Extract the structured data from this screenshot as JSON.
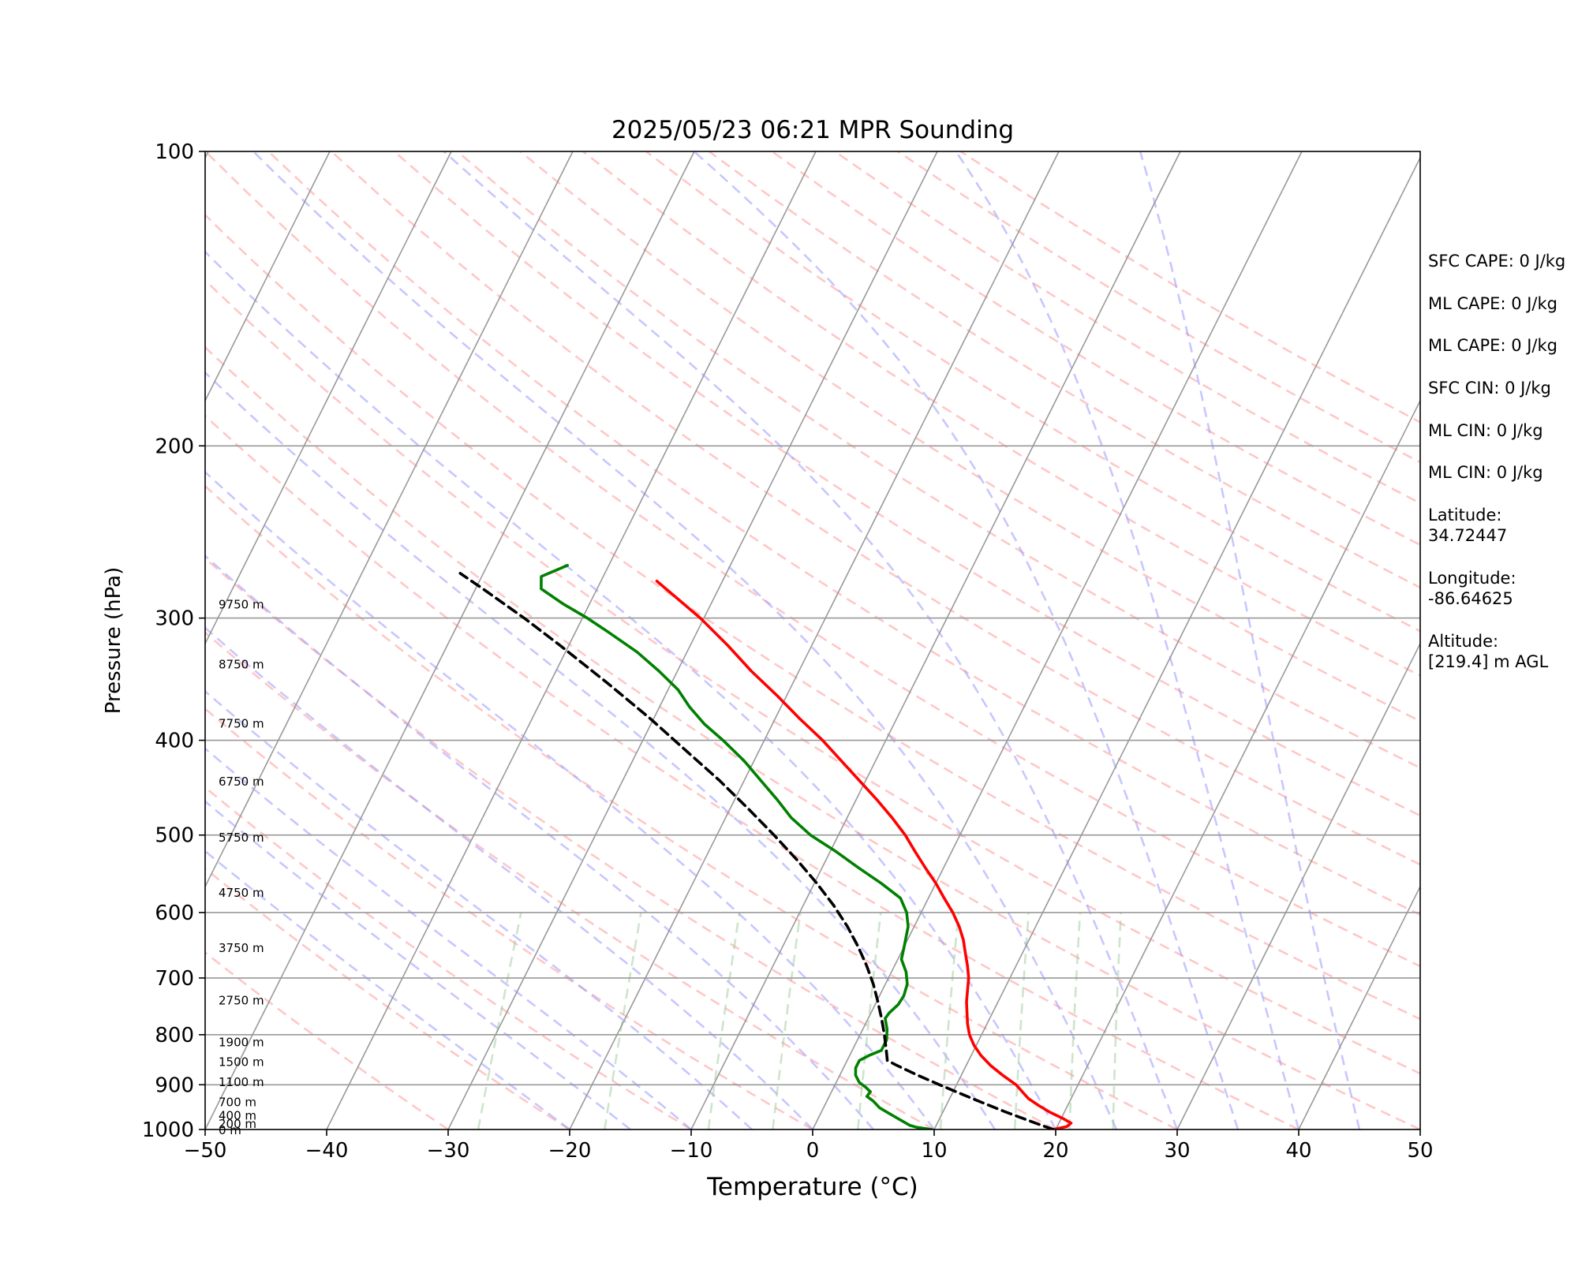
{
  "chart_data": {
    "type": "line",
    "subtype": "skew-t log-p sounding",
    "title": "2025/05/23 06:21 MPR Sounding",
    "xlabel": "Temperature (°C)",
    "ylabel": "Pressure (hPa)",
    "xlim": [
      -50,
      50
    ],
    "ylim": [
      1000,
      100
    ],
    "y_scale": "log",
    "x_ticks": [
      -50,
      -40,
      -30,
      -20,
      -10,
      0,
      10,
      20,
      30,
      40,
      50
    ],
    "x_tick_labels": [
      "−50",
      "−40",
      "−30",
      "−20",
      "−10",
      "0",
      "10",
      "20",
      "30",
      "40",
      "50"
    ],
    "y_ticks": [
      100,
      200,
      300,
      400,
      500,
      600,
      700,
      800,
      900,
      1000
    ],
    "y_tick_labels": [
      "100",
      "200",
      "300",
      "400",
      "500",
      "600",
      "700",
      "800",
      "900",
      "1000"
    ],
    "grid": true,
    "height_labels": [
      {
        "text": "0 m",
        "p": 1000
      },
      {
        "text": "200 m",
        "p": 985
      },
      {
        "text": "400 m",
        "p": 966
      },
      {
        "text": "700 m",
        "p": 936
      },
      {
        "text": "1100 m",
        "p": 893
      },
      {
        "text": "1500 m",
        "p": 852
      },
      {
        "text": "1900 m",
        "p": 813
      },
      {
        "text": "2750 m",
        "p": 737
      },
      {
        "text": "3750 m",
        "p": 651
      },
      {
        "text": "4750 m",
        "p": 572
      },
      {
        "text": "5750 m",
        "p": 502
      },
      {
        "text": "6750 m",
        "p": 440
      },
      {
        "text": "7750 m",
        "p": 384
      },
      {
        "text": "8750 m",
        "p": 334
      },
      {
        "text": "9750 m",
        "p": 290
      }
    ],
    "series": [
      {
        "role": "temperature",
        "color": "#ff0000",
        "points": [
          [
            1000,
            19.8
          ],
          [
            993,
            20.8
          ],
          [
            985,
            21.0
          ],
          [
            975,
            20.2
          ],
          [
            960,
            18.8
          ],
          [
            945,
            17.6
          ],
          [
            930,
            16.5
          ],
          [
            915,
            15.7
          ],
          [
            900,
            14.9
          ],
          [
            880,
            13.4
          ],
          [
            860,
            12.0
          ],
          [
            840,
            10.8
          ],
          [
            820,
            9.8
          ],
          [
            800,
            9.0
          ],
          [
            780,
            8.4
          ],
          [
            760,
            7.9
          ],
          [
            740,
            7.4
          ],
          [
            720,
            7.0
          ],
          [
            700,
            6.6
          ],
          [
            680,
            6.0
          ],
          [
            660,
            5.3
          ],
          [
            640,
            4.6
          ],
          [
            620,
            3.7
          ],
          [
            600,
            2.6
          ],
          [
            580,
            1.3
          ],
          [
            560,
            0.0
          ],
          [
            540,
            -1.5
          ],
          [
            520,
            -3.0
          ],
          [
            500,
            -4.5
          ],
          [
            480,
            -6.3
          ],
          [
            460,
            -8.3
          ],
          [
            440,
            -10.5
          ],
          [
            420,
            -12.8
          ],
          [
            400,
            -15.2
          ],
          [
            380,
            -18.0
          ],
          [
            360,
            -20.8
          ],
          [
            340,
            -23.9
          ],
          [
            320,
            -26.9
          ],
          [
            300,
            -30.3
          ],
          [
            285,
            -33.3
          ],
          [
            275,
            -35.4
          ]
        ]
      },
      {
        "role": "dewpoint",
        "color": "#008000",
        "points": [
          [
            1000,
            9.8
          ],
          [
            995,
            8.5
          ],
          [
            990,
            7.8
          ],
          [
            980,
            7.0
          ],
          [
            965,
            5.8
          ],
          [
            950,
            4.6
          ],
          [
            935,
            3.8
          ],
          [
            925,
            3.1
          ],
          [
            915,
            3.2
          ],
          [
            905,
            2.6
          ],
          [
            895,
            1.9
          ],
          [
            880,
            1.3
          ],
          [
            865,
            1.0
          ],
          [
            850,
            1.0
          ],
          [
            840,
            1.6
          ],
          [
            830,
            2.4
          ],
          [
            810,
            2.4
          ],
          [
            790,
            2.0
          ],
          [
            770,
            1.4
          ],
          [
            760,
            1.5
          ],
          [
            745,
            1.9
          ],
          [
            730,
            2.0
          ],
          [
            710,
            1.8
          ],
          [
            690,
            1.2
          ],
          [
            670,
            0.3
          ],
          [
            650,
            0.0
          ],
          [
            620,
            -0.5
          ],
          [
            600,
            -1.2
          ],
          [
            580,
            -2.3
          ],
          [
            560,
            -4.5
          ],
          [
            540,
            -7.0
          ],
          [
            520,
            -9.5
          ],
          [
            500,
            -12.3
          ],
          [
            480,
            -14.6
          ],
          [
            460,
            -16.5
          ],
          [
            440,
            -18.6
          ],
          [
            420,
            -20.8
          ],
          [
            400,
            -23.4
          ],
          [
            385,
            -25.6
          ],
          [
            370,
            -27.5
          ],
          [
            355,
            -29.2
          ],
          [
            340,
            -31.5
          ],
          [
            325,
            -34.1
          ],
          [
            310,
            -37.3
          ],
          [
            300,
            -39.6
          ],
          [
            290,
            -42.2
          ],
          [
            280,
            -44.6
          ],
          [
            272,
            -45.1
          ],
          [
            265,
            -43.4
          ]
        ]
      },
      {
        "role": "parcel",
        "color": "#000000",
        "dashed": true,
        "points": [
          [
            1000,
            19.8
          ],
          [
            980,
            17.5
          ],
          [
            960,
            15.2
          ],
          [
            940,
            13.0
          ],
          [
            920,
            10.8
          ],
          [
            900,
            8.6
          ],
          [
            880,
            6.4
          ],
          [
            860,
            4.3
          ],
          [
            850,
            3.3
          ],
          [
            830,
            2.8
          ],
          [
            800,
            2.0
          ],
          [
            770,
            1.1
          ],
          [
            740,
            0.1
          ],
          [
            710,
            -1.0
          ],
          [
            680,
            -2.3
          ],
          [
            650,
            -3.8
          ],
          [
            620,
            -5.5
          ],
          [
            590,
            -7.5
          ],
          [
            560,
            -9.8
          ],
          [
            530,
            -12.4
          ],
          [
            500,
            -15.3
          ],
          [
            470,
            -18.5
          ],
          [
            440,
            -22.0
          ],
          [
            410,
            -26.0
          ],
          [
            380,
            -30.3
          ],
          [
            350,
            -35.2
          ],
          [
            320,
            -40.7
          ],
          [
            300,
            -44.8
          ],
          [
            280,
            -49.4
          ],
          [
            270,
            -51.9
          ]
        ]
      }
    ]
  },
  "annotations": [
    "SFC CAPE: 0 J/kg",
    "ML CAPE: 0 J/kg",
    "ML CAPE: 0 J/kg",
    "SFC CIN: 0 J/kg",
    "ML CIN: 0 J/kg",
    "ML CIN: 0 J/kg",
    "Latitude:",
    "34.72447",
    "Longitude:",
    "-86.64625",
    "Altitude:",
    "[219.4] m AGL"
  ],
  "colors": {
    "temperature": "#ff0000",
    "dewpoint": "#008000",
    "parcel": "#000000",
    "dry_adiabats": "#ff9999",
    "moist_adiabats": "#9999ff",
    "mixing_ratio": "#99cc99",
    "isotherms": "#999999"
  }
}
